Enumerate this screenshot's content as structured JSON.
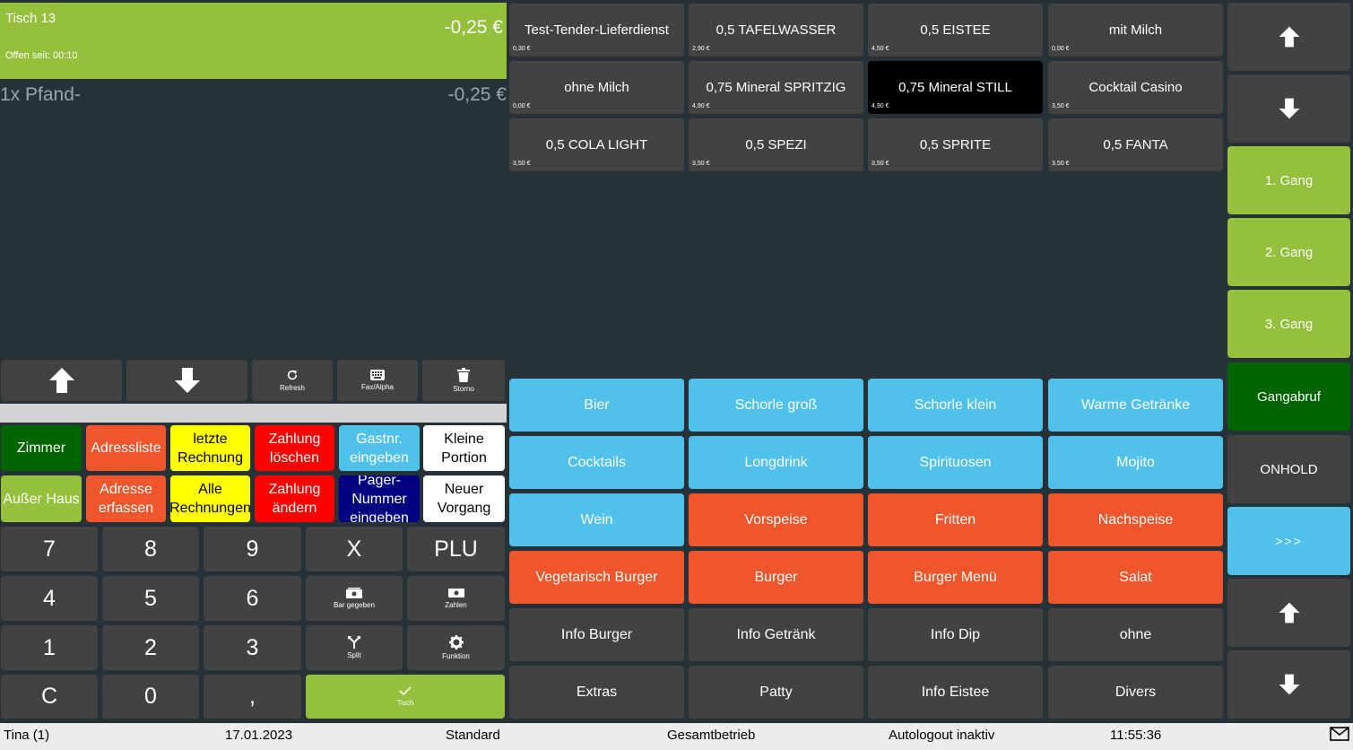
{
  "ticket": {
    "table_name": "Tisch 13",
    "total": "-0,25 €",
    "open_since": "Offen seit: 00:10",
    "lines": [
      {
        "text": "1x Pfand-",
        "amount": "-0,25 €"
      }
    ]
  },
  "ticket_tools": {
    "refresh": "Refresh",
    "fax_alpha": "Fax/Alpha",
    "storno": "Storno"
  },
  "functions": {
    "zimmer": "Zimmer",
    "adressliste": "Adressliste",
    "letzte_rechnung": "letzte\nRechnung",
    "zahlung_loeschen": "Zahlung\nlöschen",
    "gastnr": "Gastnr.\neingeben",
    "kleine_portion": "Kleine\nPortion",
    "ausser_haus": "Außer Haus",
    "adresse_erfassen": "Adresse\nerfassen",
    "alle_rechnungen": "Alle\nRechnungen",
    "zahlung_aendern": "Zahlung\nändern",
    "pager_nummer": "Pager-\nNummer\neingeben",
    "neuer_vorgang": "Neuer\nVorgang"
  },
  "numpad": {
    "k7": "7",
    "k8": "8",
    "k9": "9",
    "kx": "X",
    "kplu": "PLU",
    "k4": "4",
    "k5": "5",
    "k6": "6",
    "bar_gegeben": "Bar gegeben",
    "zahlen": "Zahlen",
    "k1": "1",
    "k2": "2",
    "k3": "3",
    "split": "Split",
    "funktion": "Funktion",
    "kc": "C",
    "k0": "0",
    "kcomma": ",",
    "tisch": "Tisch"
  },
  "products": [
    {
      "name": "Test-Tender-Lieferdienst",
      "price": "0,30 €"
    },
    {
      "name": "0,5 TAFELWASSER",
      "price": "2,90 €"
    },
    {
      "name": "0,5 EISTEE",
      "price": "4,50 €"
    },
    {
      "name": "mit Milch",
      "price": "0,00 €"
    },
    {
      "name": "ohne Milch",
      "price": "0,00 €"
    },
    {
      "name": "0,75 Mineral SPRITZIG",
      "price": "4,90 €"
    },
    {
      "name": "0,75 Mineral STILL",
      "price": "4,90 €"
    },
    {
      "name": "Cocktail Casino",
      "price": "3,50 €"
    },
    {
      "name": "0,5 COLA LIGHT",
      "price": "3,50 €"
    },
    {
      "name": "0,5 SPEZI",
      "price": "3,50 €"
    },
    {
      "name": "0,5 SPRITE",
      "price": "3,50 €"
    },
    {
      "name": "0,5 FANTA",
      "price": "3,50 €"
    }
  ],
  "categories": [
    "Bier",
    "Schorle groß",
    "Schorle klein",
    "Warme Getränke",
    "Cocktails",
    "Longdrink",
    "Spirituosen",
    "Mojito",
    "Wein",
    "Vorspeise",
    "Fritten",
    "Nachspeise",
    "Vegetarisch Burger",
    "Burger",
    "Burger Menü",
    "Salat",
    "Info Burger",
    "Info Getränk",
    "Info Dip",
    "ohne",
    "Extras",
    "Patty",
    "Info Eistee",
    "Divers"
  ],
  "right_panel": {
    "gang1": "1. Gang",
    "gang2": "2. Gang",
    "gang3": "3. Gang",
    "gangabruf": "Gangabruf",
    "onhold": "ONHOLD",
    "more": ">>>"
  },
  "status": {
    "user": "Tina (1)",
    "date": "17.01.2023",
    "mode": "Standard",
    "area": "Gesamtbetrieb",
    "autologout": "Autologout inaktiv",
    "time": "11:55:36"
  },
  "colors": {
    "background": "#263238",
    "tile_gray": "#424242",
    "light_green": "#95c03c",
    "dark_green": "#006400",
    "blue": "#4fc1ea",
    "orange": "#f0562c",
    "yellow": "#ffff00",
    "red": "#ff0000",
    "navy": "#000080",
    "status_bar": "#ececec"
  },
  "icons": {
    "arrow_up": "arrow-up-icon",
    "arrow_down": "arrow-down-icon",
    "refresh": "refresh-icon",
    "keyboard": "keyboard-icon",
    "trash": "trash-icon",
    "cash": "cash-icon",
    "split": "split-icon",
    "gear": "gear-icon",
    "check": "check-icon",
    "mail": "mail-icon"
  }
}
